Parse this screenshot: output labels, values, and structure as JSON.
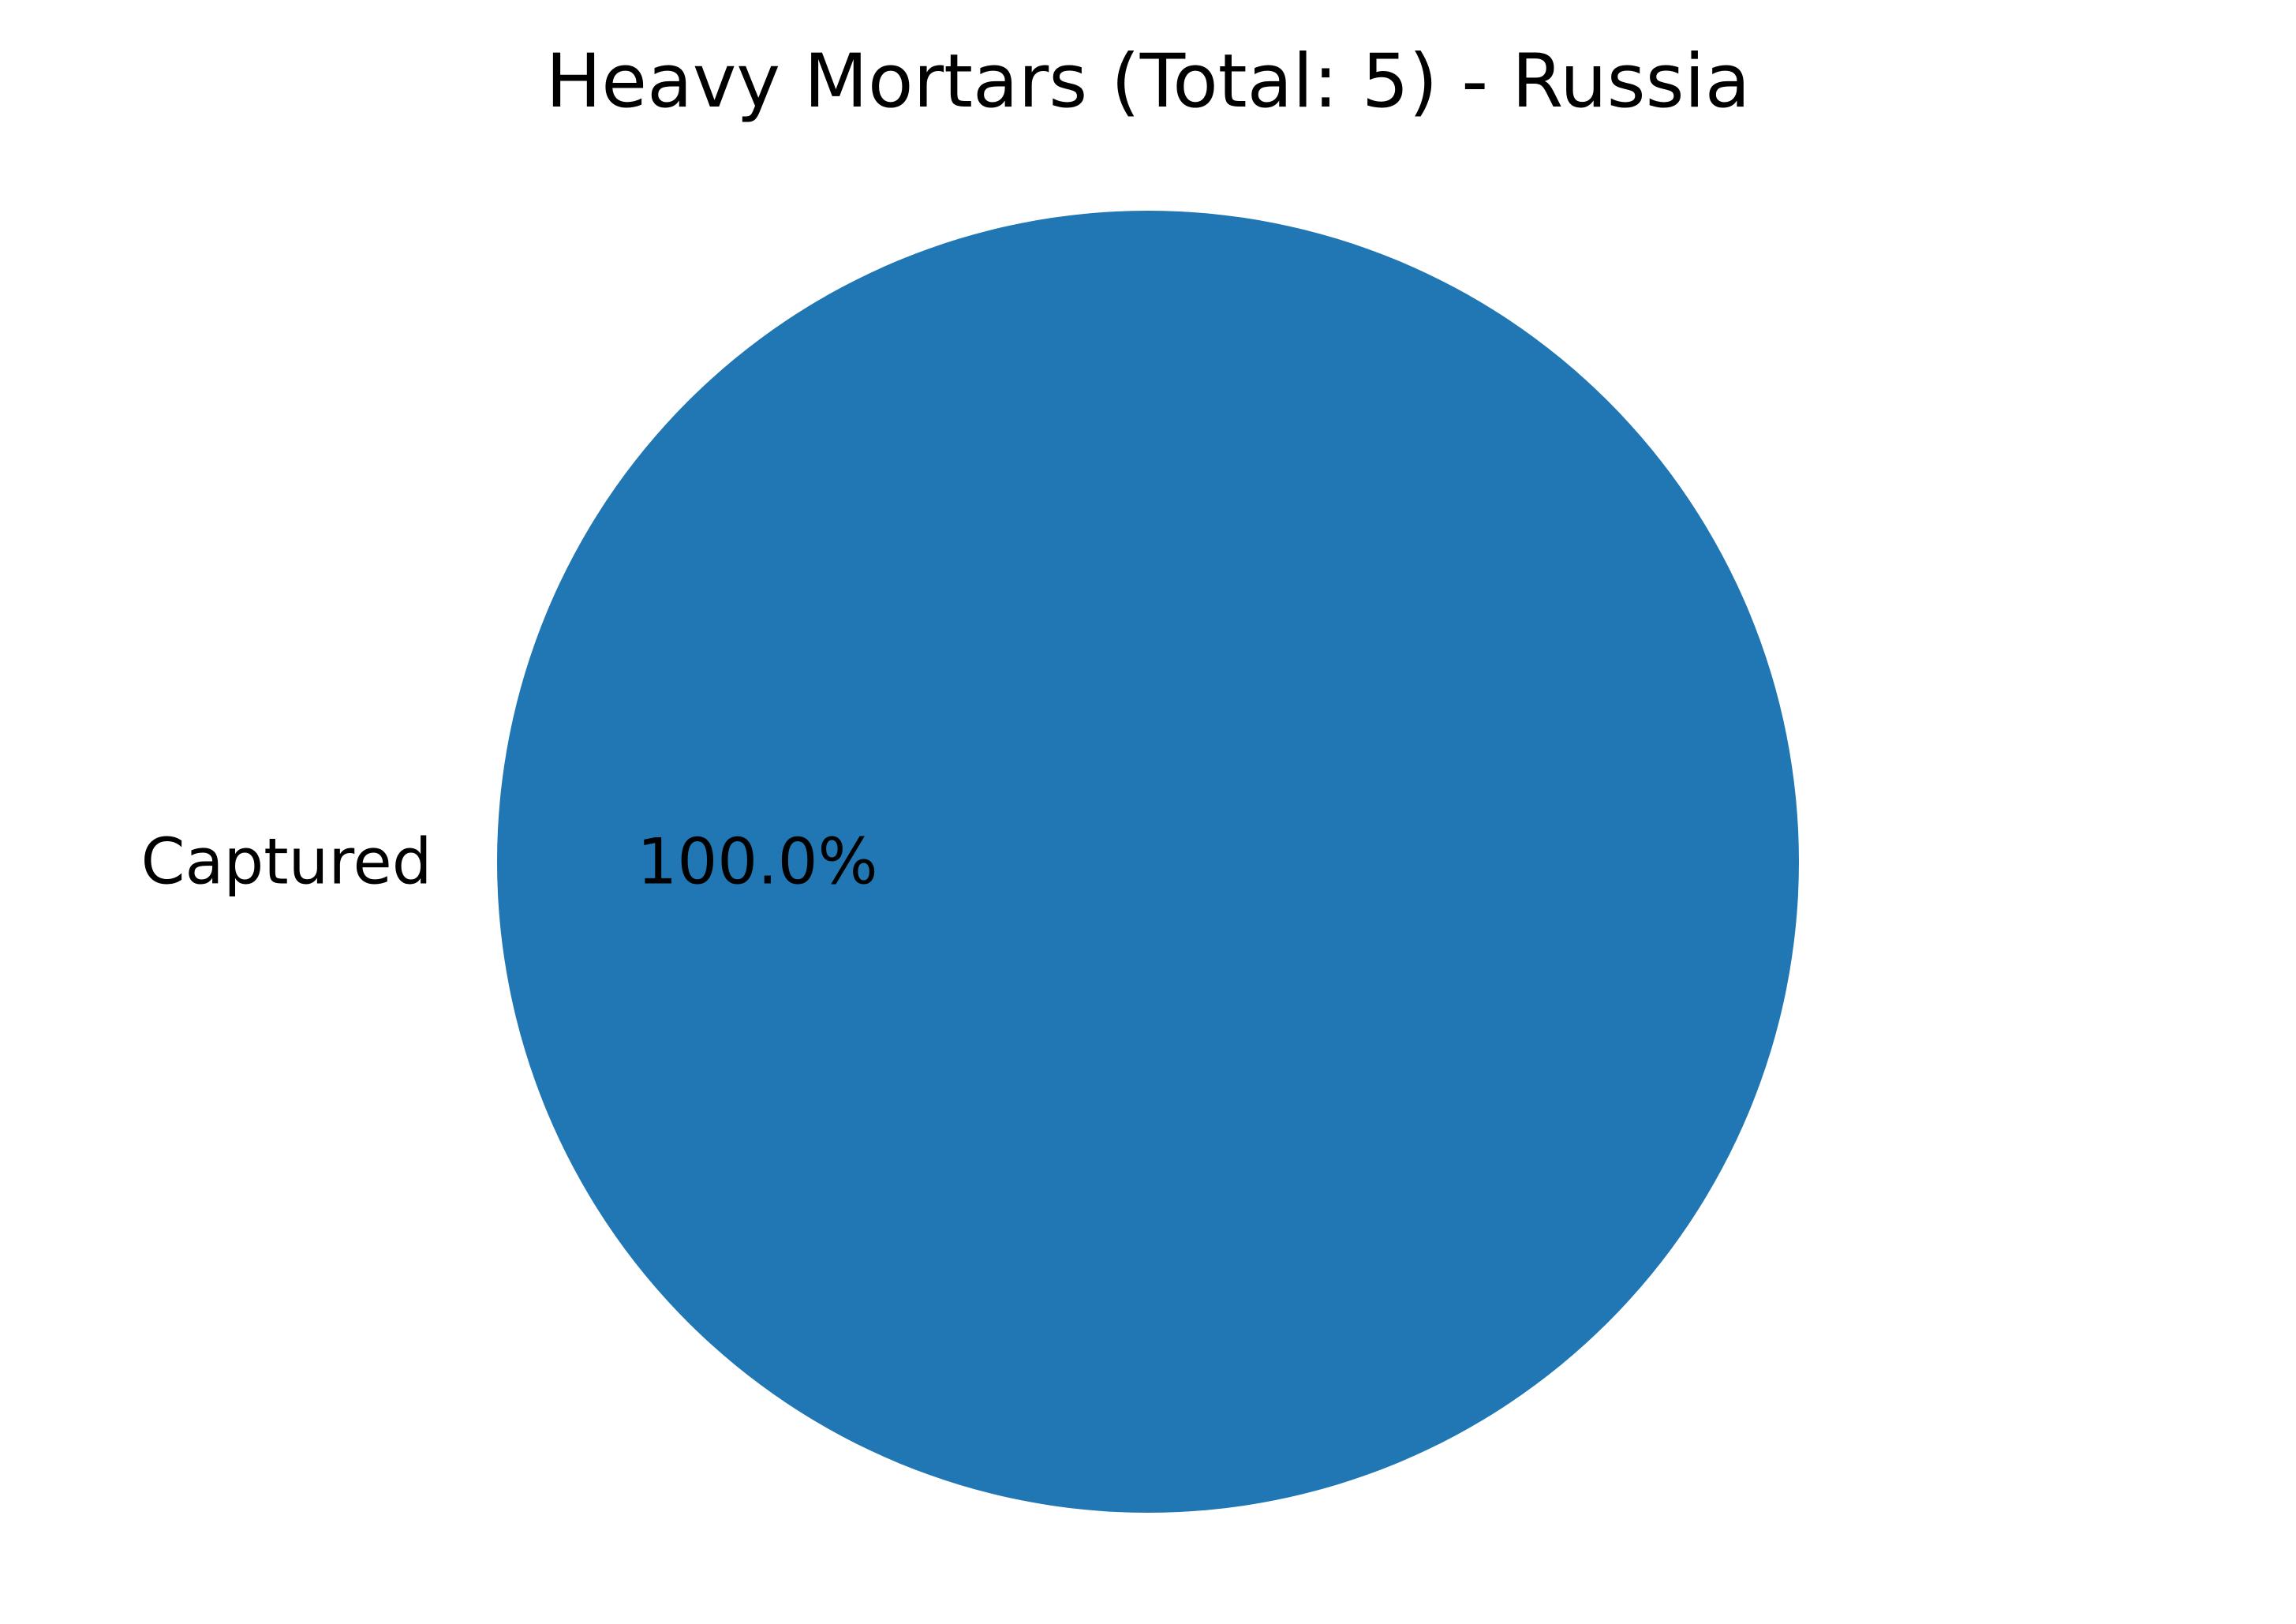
{
  "chart_data": {
    "type": "pie",
    "title": "Heavy Mortars (Total: 5) - Russia",
    "slices": [
      {
        "label": "Captured",
        "value": 5,
        "percent_label": "100.0%",
        "color": "#2077b4"
      }
    ]
  }
}
